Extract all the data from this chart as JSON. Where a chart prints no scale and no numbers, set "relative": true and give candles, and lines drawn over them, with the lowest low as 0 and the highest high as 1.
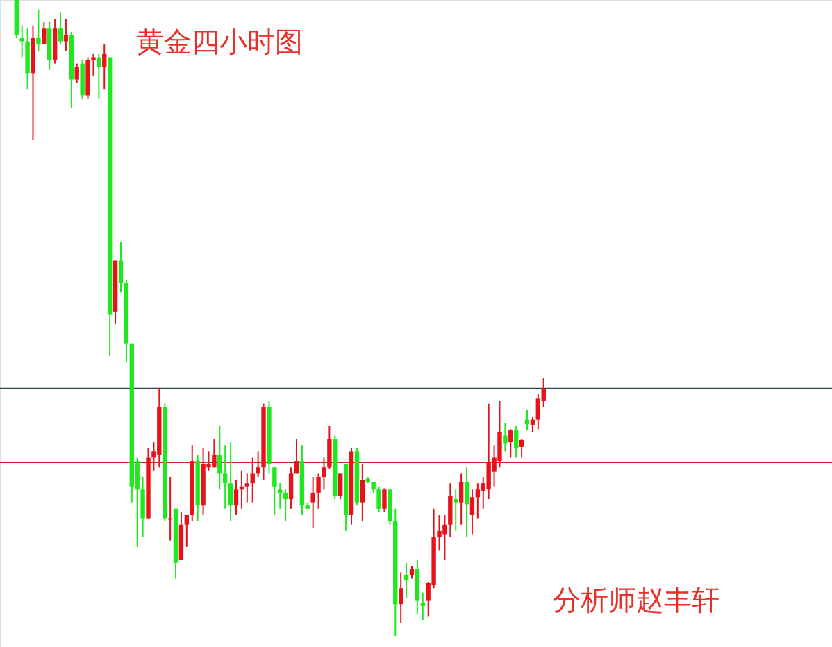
{
  "chart_data": {
    "type": "candlestick",
    "title": "黄金四小时图",
    "relative": true,
    "annotations": [
      "分析师赵丰轩"
    ],
    "categories": [
      null,
      null,
      null,
      null,
      null,
      null,
      null,
      null,
      null,
      null,
      null,
      null,
      null,
      null,
      null,
      null,
      null,
      null,
      null,
      null,
      null,
      null,
      null,
      null,
      null,
      null,
      null,
      null,
      null,
      null,
      null,
      null,
      null,
      null,
      null,
      null,
      null,
      null,
      null,
      null,
      null,
      null,
      null,
      null,
      null,
      null,
      null,
      null,
      null,
      null,
      null,
      null,
      null,
      null,
      null,
      null,
      null,
      null,
      null,
      null,
      null,
      null,
      null,
      null,
      null,
      null,
      null,
      null,
      null,
      null,
      null,
      null,
      null,
      null,
      null,
      null,
      null,
      null,
      null,
      null,
      null,
      null,
      null,
      null,
      null,
      null,
      null,
      null,
      null,
      null,
      null,
      null,
      null,
      null,
      null,
      null,
      null
    ],
    "ohlc": [
      [
        1.0,
        1.0,
        0.94,
        0.945
      ],
      [
        0.94,
        0.96,
        0.91,
        0.935
      ],
      [
        0.935,
        0.955,
        0.86,
        0.885
      ],
      [
        0.885,
        0.96,
        0.78,
        0.94
      ],
      [
        0.94,
        0.985,
        0.92,
        0.93
      ],
      [
        0.93,
        0.965,
        0.93,
        0.955
      ],
      [
        0.955,
        0.965,
        0.89,
        0.905
      ],
      [
        0.905,
        0.97,
        0.9,
        0.955
      ],
      [
        0.955,
        0.98,
        0.93,
        0.935
      ],
      [
        0.935,
        0.97,
        0.92,
        0.945
      ],
      [
        0.945,
        0.95,
        0.83,
        0.875
      ],
      [
        0.875,
        0.9,
        0.87,
        0.895
      ],
      [
        0.9,
        0.905,
        0.845,
        0.85
      ],
      [
        0.85,
        0.91,
        0.845,
        0.905
      ],
      [
        0.905,
        0.915,
        0.88,
        0.91
      ],
      [
        0.91,
        0.915,
        0.845,
        0.895
      ],
      [
        0.895,
        0.93,
        0.86,
        0.915
      ],
      [
        0.91,
        0.91,
        0.44,
        0.505
      ],
      [
        0.51,
        0.59,
        0.49,
        0.59
      ],
      [
        0.59,
        0.62,
        0.54,
        0.555
      ],
      [
        0.555,
        0.56,
        0.43,
        0.46
      ],
      [
        0.46,
        0.46,
        0.21,
        0.235
      ],
      [
        0.275,
        0.28,
        0.14,
        0.23
      ],
      [
        0.23,
        0.25,
        0.155,
        0.185
      ],
      [
        0.185,
        0.295,
        0.185,
        0.28
      ],
      [
        0.28,
        0.305,
        0.26,
        0.29
      ],
      [
        0.285,
        0.39,
        0.265,
        0.36
      ],
      [
        0.36,
        0.365,
        0.18,
        0.185
      ],
      [
        0.183,
        0.25,
        0.15,
        0.185
      ],
      [
        0.2,
        0.2,
        0.09,
        0.115
      ],
      [
        0.12,
        0.195,
        0.12,
        0.175
      ],
      [
        0.175,
        0.19,
        0.14,
        0.19
      ],
      [
        0.19,
        0.3,
        0.18,
        0.275
      ],
      [
        0.275,
        0.285,
        0.18,
        0.205
      ],
      [
        0.205,
        0.295,
        0.19,
        0.27
      ],
      [
        0.265,
        0.29,
        0.26,
        0.27
      ],
      [
        0.265,
        0.31,
        0.265,
        0.285
      ],
      [
        0.285,
        0.33,
        0.23,
        0.255
      ],
      [
        0.255,
        0.3,
        0.2,
        0.24
      ],
      [
        0.24,
        0.305,
        0.18,
        0.205
      ],
      [
        0.205,
        0.245,
        0.19,
        0.23
      ],
      [
        0.23,
        0.26,
        0.2,
        0.235
      ],
      [
        0.235,
        0.255,
        0.21,
        0.24
      ],
      [
        0.24,
        0.28,
        0.21,
        0.255
      ],
      [
        0.255,
        0.29,
        0.25,
        0.265
      ],
      [
        0.265,
        0.365,
        0.245,
        0.36
      ],
      [
        0.36,
        0.37,
        0.255,
        0.27
      ],
      [
        0.265,
        0.265,
        0.19,
        0.235
      ],
      [
        0.23,
        0.24,
        0.2,
        0.225
      ],
      [
        0.225,
        0.23,
        0.18,
        0.215
      ],
      [
        0.215,
        0.265,
        0.2,
        0.255
      ],
      [
        0.255,
        0.31,
        0.255,
        0.275
      ],
      [
        0.275,
        0.3,
        0.19,
        0.205
      ],
      [
        0.205,
        0.21,
        0.2,
        0.2
      ],
      [
        0.21,
        0.25,
        0.17,
        0.225
      ],
      [
        0.225,
        0.255,
        0.2,
        0.25
      ],
      [
        0.25,
        0.28,
        0.23,
        0.265
      ],
      [
        0.265,
        0.33,
        0.262,
        0.31
      ],
      [
        0.31,
        0.315,
        0.215,
        0.22
      ],
      [
        0.22,
        0.255,
        0.215,
        0.255
      ],
      [
        0.27,
        0.27,
        0.165,
        0.19
      ],
      [
        0.19,
        0.295,
        0.175,
        0.29
      ],
      [
        0.29,
        0.295,
        0.205,
        0.21
      ],
      [
        0.21,
        0.27,
        0.18,
        0.245
      ],
      [
        0.247,
        0.25,
        0.24,
        0.242
      ],
      [
        0.242,
        0.242,
        0.225,
        0.23
      ],
      [
        0.23,
        0.235,
        0.195,
        0.2
      ],
      [
        0.2,
        0.232,
        0.195,
        0.23
      ],
      [
        0.23,
        0.23,
        0.175,
        0.18
      ],
      [
        0.18,
        0.2,
        0.0,
        0.05
      ],
      [
        0.05,
        0.1,
        0.02,
        0.075
      ],
      [
        0.095,
        0.115,
        0.06,
        0.088
      ],
      [
        0.095,
        0.11,
        0.09,
        0.105
      ],
      [
        0.105,
        0.12,
        0.035,
        0.055
      ],
      [
        0.052,
        0.068,
        0.025,
        0.047
      ],
      [
        0.055,
        0.085,
        0.03,
        0.083
      ],
      [
        0.08,
        0.2,
        0.075,
        0.155
      ],
      [
        0.155,
        0.19,
        0.135,
        0.165
      ],
      [
        0.16,
        0.19,
        0.12,
        0.175
      ],
      [
        0.175,
        0.24,
        0.155,
        0.22
      ],
      [
        0.215,
        0.23,
        0.165,
        0.21
      ],
      [
        0.21,
        0.255,
        0.175,
        0.242
      ],
      [
        0.242,
        0.265,
        0.155,
        0.207
      ],
      [
        0.19,
        0.23,
        0.16,
        0.218
      ],
      [
        0.218,
        0.24,
        0.185,
        0.23
      ],
      [
        0.228,
        0.25,
        0.2,
        0.24
      ],
      [
        0.23,
        0.365,
        0.215,
        0.273
      ],
      [
        0.258,
        0.3,
        0.235,
        0.28
      ],
      [
        0.275,
        0.37,
        0.265,
        0.32
      ],
      [
        0.315,
        0.335,
        0.29,
        0.303
      ],
      [
        0.305,
        0.325,
        0.28,
        0.323
      ],
      [
        0.323,
        0.33,
        0.28,
        0.295
      ],
      [
        0.297,
        0.31,
        0.28,
        0.308
      ],
      [
        0.34,
        0.355,
        0.323,
        0.333
      ],
      [
        0.332,
        0.345,
        0.32,
        0.34
      ],
      [
        0.34,
        0.38,
        0.325,
        0.373
      ],
      [
        0.37,
        0.405,
        0.36,
        0.388
      ]
    ],
    "ref_lines": [
      {
        "axis": "y",
        "value": 0.389,
        "color": "#37474f"
      },
      {
        "axis": "y",
        "value": 0.273,
        "color": "#c62828"
      }
    ]
  }
}
